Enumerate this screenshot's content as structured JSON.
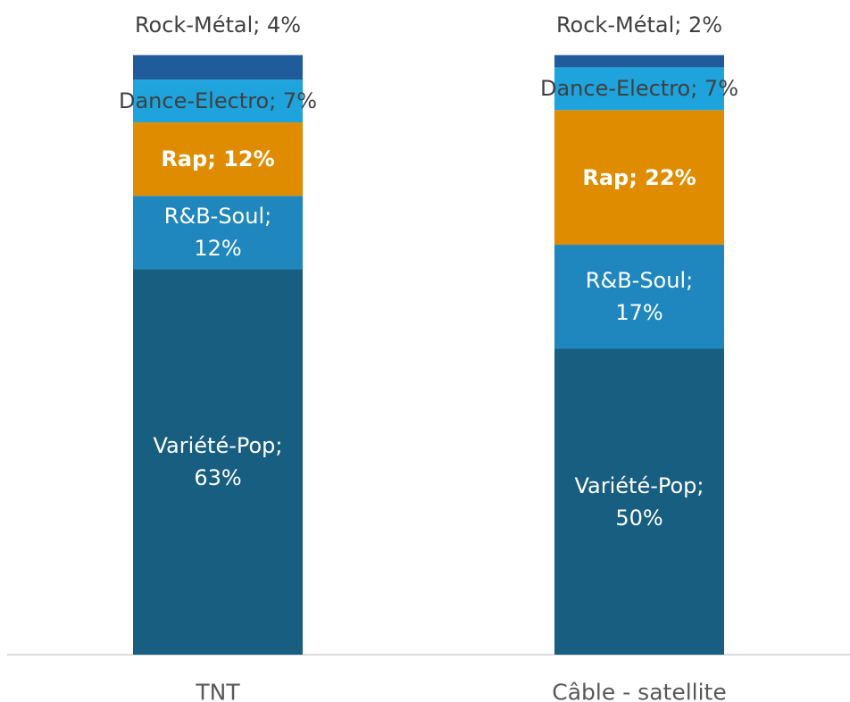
{
  "chart_data": {
    "type": "bar",
    "stacked": true,
    "categories": [
      "TNT",
      "Câble - satellite"
    ],
    "ylim": [
      0,
      100
    ],
    "series": [
      {
        "color": "#175e80",
        "values": [
          63,
          50
        ],
        "value_labels": [
          "Variété-Pop; 63%",
          "Variété-Pop; 50%"
        ]
      },
      {
        "color": "#1f87bd",
        "values": [
          12,
          17
        ],
        "value_labels": [
          "R&B-Soul; 12%",
          "R&B-Soul; 17%"
        ]
      },
      {
        "color": "#e08c00",
        "values": [
          12,
          22
        ],
        "value_labels": [
          "Rap; 12%",
          "Rap; 22%"
        ]
      },
      {
        "color": "#1ea3dc",
        "values": [
          7,
          7
        ],
        "value_labels": [
          "Dance-Electro; 7%",
          "Dance-Electro; 7%"
        ]
      },
      {
        "color": "#205c9c",
        "values": [
          4,
          2
        ],
        "value_labels": [
          "Rock-Métal; 4%",
          "Rock-Métal; 2%"
        ]
      }
    ]
  }
}
